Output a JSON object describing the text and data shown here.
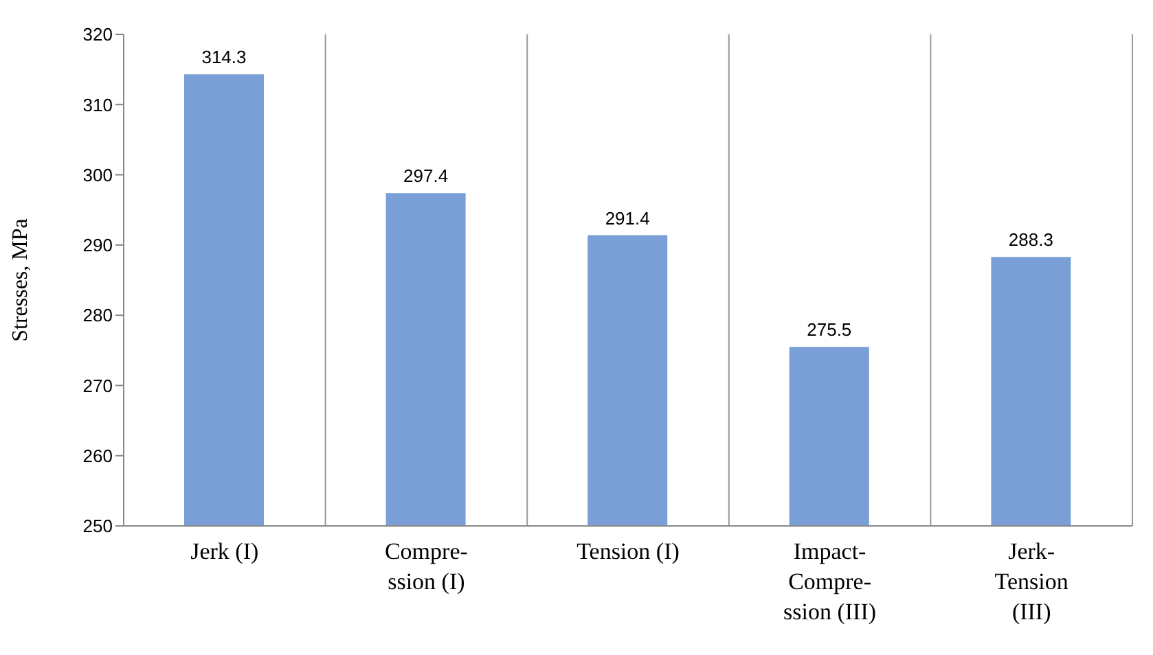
{
  "chart_data": {
    "type": "bar",
    "categories": [
      "Jerk (I)",
      "Compre-\nssion (I)",
      "Tension (I)",
      "Impact-\nCompre-\nssion (III)",
      "Jerk-\nTension\n(III)"
    ],
    "values": [
      314.3,
      297.4,
      291.4,
      275.5,
      288.3
    ],
    "color": "#7a9fd6",
    "ylabel": "Stresses, MPa",
    "ylim": [
      250,
      320
    ],
    "yticks": [
      250,
      260,
      270,
      280,
      290,
      300,
      310,
      320
    ],
    "grid": "x",
    "data_labels": true
  }
}
